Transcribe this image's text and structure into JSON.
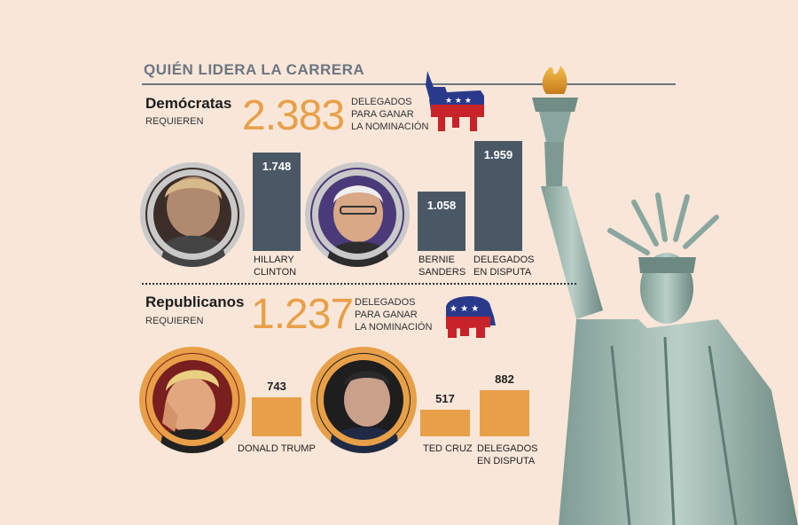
{
  "header": {
    "title": "QUIÉN LIDERA LA CARRERA"
  },
  "democrats": {
    "party": "Demócratas",
    "requires": "REQUIEREN",
    "needed": "2.383",
    "needed_text": [
      "DELEGADOS",
      "PARA GANAR",
      "LA NOMINACIÓN"
    ],
    "candidates": [
      {
        "label": [
          "HILLARY",
          "CLINTON"
        ],
        "value_label": "1.748"
      },
      {
        "label": [
          "BERNIE",
          "SANDERS"
        ],
        "value_label": "1.058"
      },
      {
        "label": [
          "DELEGADOS",
          "EN DISPUTA"
        ],
        "value_label": "1.959"
      }
    ]
  },
  "republicans": {
    "party": "Republicanos",
    "requires": "REQUIEREN",
    "needed": "1.237",
    "needed_text": [
      "DELEGADOS",
      "PARA GANAR",
      "LA NOMINACIÓN"
    ],
    "candidates": [
      {
        "label": [
          "DONALD TRUMP"
        ],
        "value_label": "743"
      },
      {
        "label": [
          "TED CRUZ"
        ],
        "value_label": "517"
      },
      {
        "label": [
          "DELEGADOS",
          "EN DISPUTA"
        ],
        "value_label": "882"
      }
    ]
  },
  "chart_data": [
    {
      "type": "bar",
      "categories": [
        "HILLARY CLINTON",
        "BERNIE SANDERS",
        "DELEGADOS EN DISPUTA"
      ],
      "values": [
        1748,
        1058,
        1959
      ],
      "color": "#4a5866"
    },
    {
      "type": "bar",
      "categories": [
        "DONALD TRUMP",
        "TED CRUZ",
        "DELEGADOS EN DISPUTA"
      ],
      "values": [
        743,
        517,
        882
      ],
      "color": "#e8a048"
    }
  ],
  "colors": {
    "accent": "#e8a048",
    "dem_bar": "#4a5866",
    "background": "#f8e6d9"
  }
}
